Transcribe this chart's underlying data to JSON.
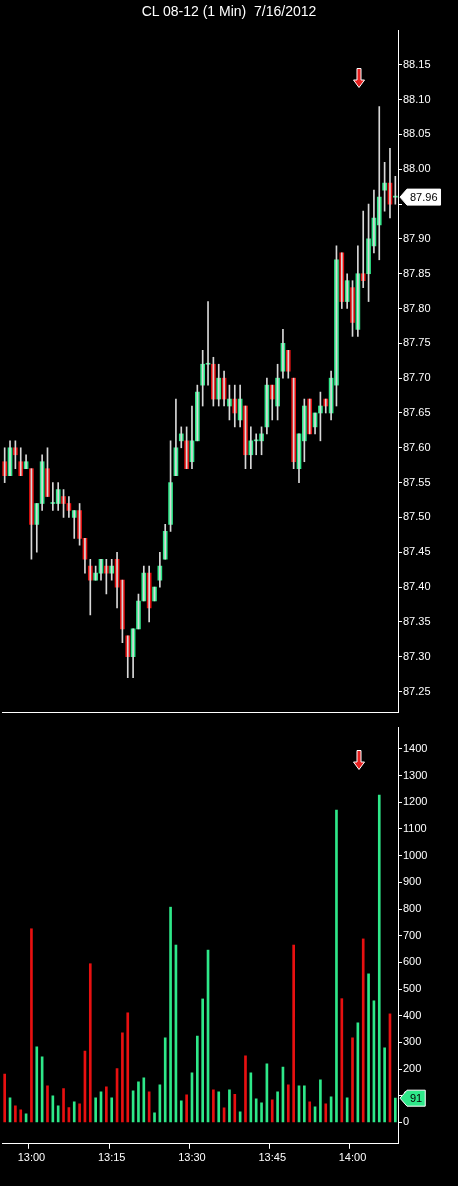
{
  "chart_data": [
    {
      "type": "candlestick",
      "title": "CL 08-12 (1 Min)  7/16/2012",
      "categories": [
        null,
        null,
        null,
        null,
        null,
        null,
        null,
        null,
        null,
        null,
        null,
        null,
        null,
        null,
        null,
        null,
        null,
        null,
        null,
        null,
        null,
        null,
        null,
        null,
        null,
        null,
        null,
        null,
        null,
        null,
        null,
        null,
        null,
        null,
        null,
        null,
        null,
        null,
        null,
        null,
        null,
        null,
        null,
        null,
        null,
        null,
        null,
        null,
        null,
        null,
        null,
        null,
        null,
        null,
        null,
        null,
        null,
        null,
        null,
        null,
        null,
        null,
        null,
        null,
        null,
        null,
        null,
        null,
        null,
        null,
        null,
        null,
        null,
        null
      ],
      "ohlc": [
        [
          87.58,
          87.6,
          87.55,
          87.56
        ],
        [
          87.56,
          87.61,
          87.56,
          87.6
        ],
        [
          87.6,
          87.61,
          87.57,
          87.59
        ],
        [
          87.58,
          87.6,
          87.56,
          87.56
        ],
        [
          87.57,
          87.59,
          87.57,
          87.58
        ],
        [
          87.57,
          87.57,
          87.44,
          87.49
        ],
        [
          87.49,
          87.52,
          87.45,
          87.52
        ],
        [
          87.52,
          87.59,
          87.51,
          87.58
        ],
        [
          87.57,
          87.6,
          87.53,
          87.53
        ],
        [
          87.52,
          87.55,
          87.51,
          87.52
        ],
        [
          87.52,
          87.55,
          87.51,
          87.54
        ],
        [
          87.53,
          87.54,
          87.5,
          87.52
        ],
        [
          87.52,
          87.53,
          87.5,
          87.51
        ],
        [
          87.5,
          87.51,
          87.47,
          87.51
        ],
        [
          87.51,
          87.52,
          87.46,
          87.47
        ],
        [
          87.47,
          87.47,
          87.42,
          87.44
        ],
        [
          87.43,
          87.44,
          87.36,
          87.41
        ],
        [
          87.41,
          87.43,
          87.41,
          87.42
        ],
        [
          87.42,
          87.44,
          87.41,
          87.44
        ],
        [
          87.43,
          87.44,
          87.39,
          87.42
        ],
        [
          87.42,
          87.44,
          87.41,
          87.43
        ],
        [
          87.44,
          87.45,
          87.37,
          87.4
        ],
        [
          87.41,
          87.41,
          87.32,
          87.34
        ],
        [
          87.33,
          87.33,
          87.27,
          87.3
        ],
        [
          87.3,
          87.34,
          87.27,
          87.34
        ],
        [
          87.34,
          87.39,
          87.34,
          87.38
        ],
        [
          87.38,
          87.43,
          87.38,
          87.42
        ],
        [
          87.42,
          87.43,
          87.35,
          87.37
        ],
        [
          87.38,
          87.4,
          87.38,
          87.4
        ],
        [
          87.41,
          87.45,
          87.4,
          87.43
        ],
        [
          87.44,
          87.49,
          87.44,
          87.48
        ],
        [
          87.49,
          87.61,
          87.48,
          87.55
        ],
        [
          87.56,
          87.67,
          87.56,
          87.6
        ],
        [
          87.61,
          87.63,
          87.6,
          87.62
        ],
        [
          87.61,
          87.63,
          87.57,
          87.57
        ],
        [
          87.58,
          87.66,
          87.57,
          87.61
        ],
        [
          87.61,
          87.69,
          87.61,
          87.68
        ],
        [
          87.69,
          87.74,
          87.66,
          87.72
        ],
        [
          87.72,
          87.81,
          87.69,
          87.72
        ],
        [
          87.72,
          87.73,
          87.66,
          87.67
        ],
        [
          87.67,
          87.72,
          87.66,
          87.7
        ],
        [
          87.7,
          87.71,
          87.66,
          87.67
        ],
        [
          87.66,
          87.69,
          87.64,
          87.67
        ],
        [
          87.67,
          87.69,
          87.63,
          87.65
        ],
        [
          87.64,
          87.69,
          87.63,
          87.67
        ],
        [
          87.66,
          87.66,
          87.57,
          87.59
        ],
        [
          87.59,
          87.63,
          87.57,
          87.61
        ],
        [
          87.61,
          87.62,
          87.59,
          87.61
        ],
        [
          87.61,
          87.63,
          87.59,
          87.62
        ],
        [
          87.63,
          87.7,
          87.62,
          87.69
        ],
        [
          87.69,
          87.69,
          87.64,
          87.67
        ],
        [
          87.66,
          87.72,
          87.64,
          87.7
        ],
        [
          87.71,
          87.77,
          87.7,
          87.75
        ],
        [
          87.74,
          87.74,
          87.7,
          87.71
        ],
        [
          87.7,
          87.7,
          87.57,
          87.58
        ],
        [
          87.57,
          87.62,
          87.55,
          87.62
        ],
        [
          87.61,
          87.67,
          87.58,
          87.66
        ],
        [
          87.67,
          87.67,
          87.62,
          87.62
        ],
        [
          87.63,
          87.65,
          87.62,
          87.65
        ],
        [
          87.65,
          87.68,
          87.61,
          87.66
        ],
        [
          87.67,
          87.67,
          87.65,
          87.66
        ],
        [
          87.65,
          87.71,
          87.64,
          87.7
        ],
        [
          87.69,
          87.89,
          87.66,
          87.87
        ],
        [
          87.88,
          87.88,
          87.8,
          87.81
        ],
        [
          87.81,
          87.85,
          87.8,
          87.84
        ],
        [
          87.83,
          87.84,
          87.76,
          87.78
        ],
        [
          87.77,
          87.89,
          87.76,
          87.85
        ],
        [
          87.85,
          87.94,
          87.83,
          87.84
        ],
        [
          87.85,
          87.95,
          87.81,
          87.9
        ],
        [
          87.89,
          87.97,
          87.88,
          87.93
        ],
        [
          87.92,
          88.09,
          87.87,
          87.96
        ],
        [
          87.97,
          88.01,
          87.94,
          87.98
        ],
        [
          87.98,
          88.03,
          87.93,
          87.95
        ],
        [
          87.96,
          87.99,
          87.95,
          87.96
        ]
      ],
      "colors": [
        "#e81010",
        "#2ee889",
        "#e81010",
        "#e81010",
        "#2ee889",
        "#e81010",
        "#2ee889",
        "#2ee889",
        "#e81010",
        "#2ee889",
        "#2ee889",
        "#e81010",
        "#e81010",
        "#2ee889",
        "#e81010",
        "#e81010",
        "#e81010",
        "#2ee889",
        "#2ee889",
        "#e81010",
        "#2ee889",
        "#e81010",
        "#e81010",
        "#e81010",
        "#2ee889",
        "#2ee889",
        "#2ee889",
        "#e81010",
        "#2ee889",
        "#2ee889",
        "#2ee889",
        "#2ee889",
        "#2ee889",
        "#2ee889",
        "#e81010",
        "#2ee889",
        "#2ee889",
        "#2ee889",
        "#2ee889",
        "#e81010",
        "#2ee889",
        "#e81010",
        "#2ee889",
        "#e81010",
        "#2ee889",
        "#e81010",
        "#2ee889",
        "#2ee889",
        "#2ee889",
        "#2ee889",
        "#e81010",
        "#2ee889",
        "#2ee889",
        "#e81010",
        "#e81010",
        "#2ee889",
        "#2ee889",
        "#e81010",
        "#2ee889",
        "#2ee889",
        "#e81010",
        "#2ee889",
        "#2ee889",
        "#e81010",
        "#2ee889",
        "#e81010",
        "#2ee889",
        "#e81010",
        "#2ee889",
        "#2ee889",
        "#2ee889",
        "#2ee889",
        "#e81010",
        "#2ee889"
      ],
      "ylim": [
        87.22,
        88.2
      ],
      "yticks": [
        87.25,
        {
          "value": 87.3,
          "label": "87.30"
        },
        87.35,
        {
          "value": 87.4,
          "label": "87.40"
        },
        87.45,
        {
          "value": 87.5,
          "label": "87.50"
        },
        87.55,
        {
          "value": 87.6,
          "label": "87.60"
        },
        87.65,
        {
          "value": 87.7,
          "label": "87.70"
        },
        87.75,
        {
          "value": 87.8,
          "label": "87.80"
        },
        87.85,
        {
          "value": 87.9,
          "label": "87.90"
        },
        {
          "value": 87.95,
          "label": null
        },
        {
          "value": 88,
          "label": "88.00"
        },
        88.05,
        {
          "value": 88.1,
          "label": "88.10"
        },
        88.15
      ],
      "tick_labels": "y",
      "annotations": [
        "87.96"
      ]
    },
    {
      "type": "bar",
      "categories": [
        null,
        null,
        null,
        null,
        null,
        "13:00",
        null,
        null,
        null,
        null,
        null,
        null,
        null,
        null,
        null,
        null,
        null,
        null,
        null,
        null,
        "13:15",
        null,
        null,
        null,
        null,
        null,
        null,
        null,
        null,
        null,
        null,
        null,
        null,
        null,
        null,
        "13:30",
        null,
        null,
        null,
        null,
        null,
        null,
        null,
        null,
        null,
        null,
        null,
        null,
        null,
        null,
        "13:45",
        null,
        null,
        null,
        null,
        null,
        null,
        null,
        null,
        null,
        null,
        null,
        null,
        null,
        null,
        "14:00",
        null,
        null,
        null,
        null,
        null,
        null,
        null,
        null
      ],
      "values": [
        181,
        92,
        62,
        47,
        32,
        726,
        283,
        246,
        137,
        100,
        62,
        127,
        56,
        77,
        70,
        268,
        595,
        92,
        115,
        134,
        92,
        202,
        336,
        411,
        119,
        152,
        167,
        115,
        36,
        141,
        317,
        807,
        665,
        81,
        104,
        186,
        324,
        463,
        646,
        122,
        115,
        55,
        122,
        105,
        40,
        250,
        186,
        89,
        74,
        220,
        85,
        115,
        208,
        141,
        665,
        137,
        137,
        77,
        59,
        160,
        70,
        96,
        1171,
        464,
        92,
        317,
        373,
        688,
        557,
        456,
        1227,
        280,
        407,
        91
      ],
      "colors": [
        "#e81010",
        "#2ee889",
        "#e81010",
        "#e81010",
        "#2ee889",
        "#e81010",
        "#2ee889",
        "#2ee889",
        "#e81010",
        "#2ee889",
        "#2ee889",
        "#e81010",
        "#e81010",
        "#2ee889",
        "#e81010",
        "#e81010",
        "#e81010",
        "#2ee889",
        "#2ee889",
        "#e81010",
        "#2ee889",
        "#e81010",
        "#e81010",
        "#e81010",
        "#2ee889",
        "#2ee889",
        "#2ee889",
        "#e81010",
        "#2ee889",
        "#2ee889",
        "#2ee889",
        "#2ee889",
        "#2ee889",
        "#2ee889",
        "#e81010",
        "#2ee889",
        "#2ee889",
        "#2ee889",
        "#2ee889",
        "#e81010",
        "#2ee889",
        "#e81010",
        "#2ee889",
        "#e81010",
        "#2ee889",
        "#e81010",
        "#2ee889",
        "#2ee889",
        "#2ee889",
        "#2ee889",
        "#e81010",
        "#2ee889",
        "#2ee889",
        "#e81010",
        "#e81010",
        "#2ee889",
        "#2ee889",
        "#e81010",
        "#2ee889",
        "#2ee889",
        "#e81010",
        "#2ee889",
        "#2ee889",
        "#e81010",
        "#2ee889",
        "#e81010",
        "#2ee889",
        "#e81010",
        "#2ee889",
        "#2ee889",
        "#2ee889",
        "#2ee889",
        "#e81010",
        "#2ee889"
      ],
      "ylim": [
        -80,
        1480
      ],
      "yticks": [
        0,
        100,
        200,
        300,
        400,
        500,
        600,
        700,
        800,
        900,
        1000,
        1100,
        1200,
        1300,
        1400
      ],
      "annotations": [
        "91"
      ]
    }
  ]
}
